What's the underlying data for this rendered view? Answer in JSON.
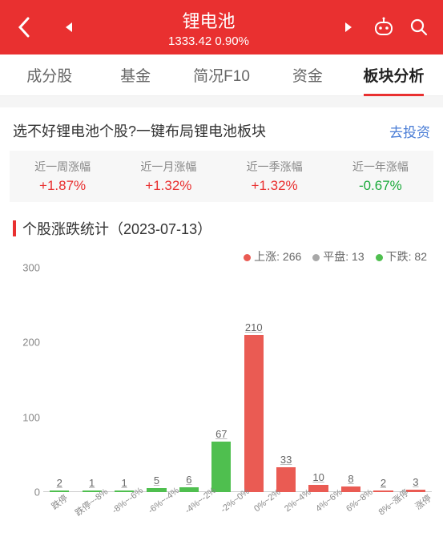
{
  "header": {
    "title": "锂电池",
    "index_value": "1333.42",
    "index_change": "0.90%",
    "bg_color": "#e93030"
  },
  "tabs": {
    "items": [
      "成分股",
      "基金",
      "简况F10",
      "资金",
      "板块分析"
    ],
    "active_index": 4
  },
  "banner": {
    "text": "选不好锂电池个股?一键布局锂电池板块",
    "link_text": "去投资"
  },
  "period_stats": {
    "items": [
      {
        "label": "近一周涨幅",
        "value": "+1.87%",
        "dir": "up"
      },
      {
        "label": "近一月涨幅",
        "value": "+1.32%",
        "dir": "up"
      },
      {
        "label": "近一季涨幅",
        "value": "+1.32%",
        "dir": "up"
      },
      {
        "label": "近一年涨幅",
        "value": "-0.67%",
        "dir": "down"
      }
    ],
    "up_color": "#e93030",
    "down_color": "#1caa3c"
  },
  "chart_section": {
    "title": "个股涨跌统计（2023-07-13）",
    "legend": [
      {
        "label": "上涨",
        "value": 266,
        "color": "#ea5b53"
      },
      {
        "label": "平盘",
        "value": 13,
        "color": "#a8a8a8"
      },
      {
        "label": "下跌",
        "value": 82,
        "color": "#4fbf4f"
      }
    ],
    "chart": {
      "type": "bar",
      "ylim": [
        0,
        300
      ],
      "yticks": [
        0,
        100,
        200,
        300
      ],
      "ytick_fontsize": 13,
      "baseline_color": "#cccccc",
      "label_fontsize": 13,
      "label_underline_color": "#bbbbbb",
      "xlabel_fontsize": 11,
      "xlabel_rotation": -38,
      "bar_width_ratio": 0.6,
      "categories": [
        "跌停",
        "跌停~-8%",
        "-8%~-6%",
        "-6%~-4%",
        "-4%~-2%",
        "-2%~0%",
        "0%~2%",
        "2%~4%",
        "4%~6%",
        "6%~8%",
        "8%~涨停",
        "涨停"
      ],
      "values": [
        2,
        1,
        1,
        5,
        6,
        67,
        210,
        33,
        10,
        8,
        2,
        3
      ],
      "bar_colors": [
        "#4fbf4f",
        "#4fbf4f",
        "#4fbf4f",
        "#4fbf4f",
        "#4fbf4f",
        "#4fbf4f",
        "#ea5b53",
        "#ea5b53",
        "#ea5b53",
        "#ea5b53",
        "#ea5b53",
        "#ea5b53"
      ]
    }
  }
}
